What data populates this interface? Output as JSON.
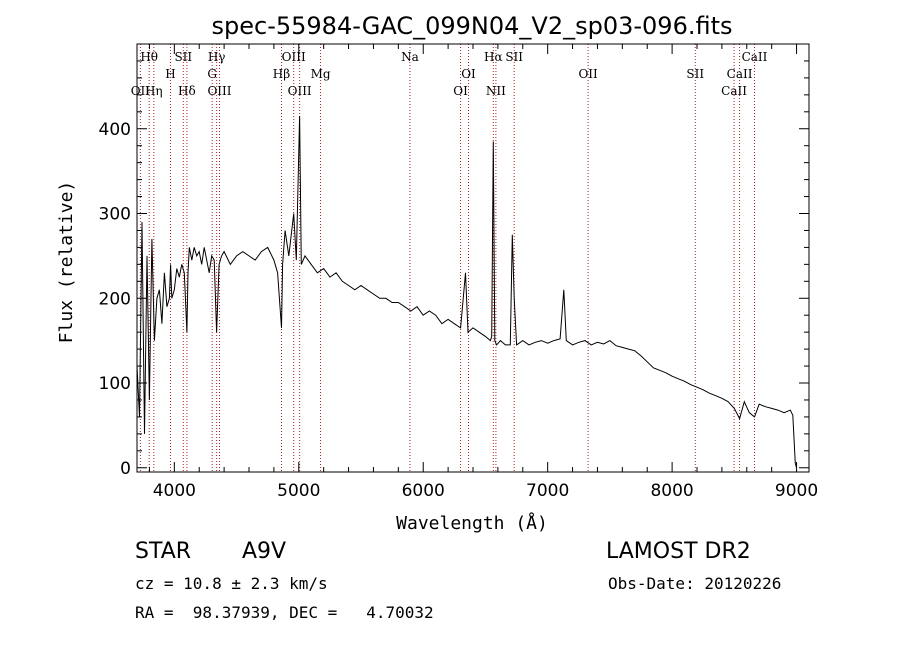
{
  "chart_data": {
    "type": "line",
    "title": "spec-55984-GAC_099N04_V2_sp03-096.fits",
    "xlabel": "Wavelength (Å)",
    "ylabel": "Flux (relative)",
    "xlim": [
      3700,
      9100
    ],
    "ylim": [
      -5,
      500
    ],
    "xticks": [
      4000,
      5000,
      6000,
      7000,
      8000,
      9000
    ],
    "yticks": [
      0,
      100,
      200,
      300,
      400
    ],
    "grid": false,
    "series": [
      {
        "x": [
          3700,
          3720,
          3740,
          3760,
          3780,
          3800,
          3820,
          3840,
          3860,
          3880,
          3900,
          3920,
          3940,
          3960,
          3970,
          3980,
          4000,
          4020,
          4040,
          4060,
          4080,
          4101,
          4110,
          4120,
          4140,
          4160,
          4180,
          4200,
          4220,
          4240,
          4260,
          4280,
          4300,
          4320,
          4340,
          4360,
          4380,
          4400,
          4450,
          4500,
          4550,
          4600,
          4650,
          4700,
          4750,
          4800,
          4830,
          4861,
          4870,
          4890,
          4920,
          4959,
          4980,
          5007,
          5020,
          5050,
          5100,
          5150,
          5200,
          5250,
          5300,
          5350,
          5400,
          5450,
          5500,
          5550,
          5600,
          5650,
          5700,
          5750,
          5800,
          5850,
          5900,
          5950,
          6000,
          6050,
          6100,
          6150,
          6200,
          6250,
          6300,
          6340,
          6360,
          6400,
          6450,
          6500,
          6540,
          6550,
          6563,
          6575,
          6590,
          6620,
          6660,
          6700,
          6716,
          6731,
          6750,
          6800,
          6850,
          6900,
          6950,
          7000,
          7050,
          7100,
          7130,
          7150,
          7200,
          7250,
          7300,
          7350,
          7400,
          7450,
          7500,
          7550,
          7600,
          7650,
          7700,
          7750,
          7800,
          7850,
          7900,
          7950,
          8000,
          8050,
          8100,
          8150,
          8200,
          8250,
          8300,
          8350,
          8400,
          8450,
          8500,
          8542,
          8580,
          8620,
          8662,
          8700,
          8750,
          8800,
          8850,
          8900,
          8950,
          8970,
          8990,
          9000
        ],
        "y": [
          120,
          60,
          290,
          40,
          250,
          80,
          270,
          150,
          200,
          210,
          170,
          230,
          190,
          200,
          240,
          200,
          210,
          235,
          225,
          240,
          230,
          160,
          230,
          260,
          245,
          260,
          250,
          255,
          240,
          260,
          245,
          230,
          250,
          245,
          160,
          240,
          250,
          255,
          240,
          250,
          255,
          250,
          245,
          255,
          260,
          245,
          230,
          165,
          240,
          280,
          250,
          300,
          245,
          415,
          240,
          250,
          240,
          230,
          235,
          225,
          230,
          220,
          215,
          210,
          215,
          210,
          205,
          200,
          200,
          195,
          195,
          190,
          185,
          190,
          180,
          185,
          180,
          170,
          175,
          170,
          165,
          230,
          160,
          165,
          160,
          155,
          150,
          155,
          385,
          150,
          145,
          150,
          145,
          145,
          275,
          200,
          145,
          150,
          145,
          148,
          150,
          147,
          150,
          152,
          210,
          150,
          145,
          148,
          150,
          145,
          148,
          146,
          150,
          144,
          142,
          140,
          138,
          132,
          125,
          118,
          115,
          112,
          108,
          105,
          102,
          98,
          95,
          92,
          88,
          85,
          82,
          78,
          70,
          58,
          78,
          65,
          60,
          75,
          72,
          70,
          68,
          65,
          68,
          62,
          5,
          0
        ]
      }
    ],
    "spectral_lines": [
      {
        "name": "OII",
        "x": 3727,
        "level": 3
      },
      {
        "name": "Hθ",
        "x": 3798,
        "level": 1
      },
      {
        "name": "Hη",
        "x": 3835,
        "level": 3
      },
      {
        "name": "H",
        "x": 3969,
        "level": 2
      },
      {
        "name": "SII",
        "x": 4072,
        "level": 1
      },
      {
        "name": "Hδ",
        "x": 4101,
        "level": 3
      },
      {
        "name": "Hγ",
        "x": 4340,
        "level": 1
      },
      {
        "name": "G",
        "x": 4304,
        "level": 2
      },
      {
        "name": "OIII",
        "x": 4363,
        "level": 3
      },
      {
        "name": "Hβ",
        "x": 4861,
        "level": 2
      },
      {
        "name": "OIII",
        "x": 4959,
        "level": 1
      },
      {
        "name": "OIII",
        "x": 5007,
        "level": 3
      },
      {
        "name": "Mg",
        "x": 5175,
        "level": 2
      },
      {
        "name": "Na",
        "x": 5893,
        "level": 1
      },
      {
        "name": "OI",
        "x": 6300,
        "level": 3
      },
      {
        "name": "OI",
        "x": 6364,
        "level": 2
      },
      {
        "name": "Hα",
        "x": 6563,
        "level": 1
      },
      {
        "name": "NII",
        "x": 6584,
        "level": 3
      },
      {
        "name": "SII",
        "x": 6731,
        "level": 1
      },
      {
        "name": "OII",
        "x": 7325,
        "level": 2
      },
      {
        "name": "SII",
        "x": 8186,
        "level": 2
      },
      {
        "name": "CaII",
        "x": 8498,
        "level": 3
      },
      {
        "name": "CaII",
        "x": 8542,
        "level": 2
      },
      {
        "name": "CaII",
        "x": 8662,
        "level": 1
      }
    ],
    "colors": {
      "spectrum": "#000000",
      "lines": "#aa2222"
    }
  },
  "info": {
    "class": "STAR",
    "subclass": "A9V",
    "survey": "LAMOST DR2",
    "cz": "cz = 10.8 ± 2.3 km/s",
    "obs_date": "Obs-Date: 20120226",
    "radec": "RA =  98.37939, DEC =   4.70032"
  }
}
